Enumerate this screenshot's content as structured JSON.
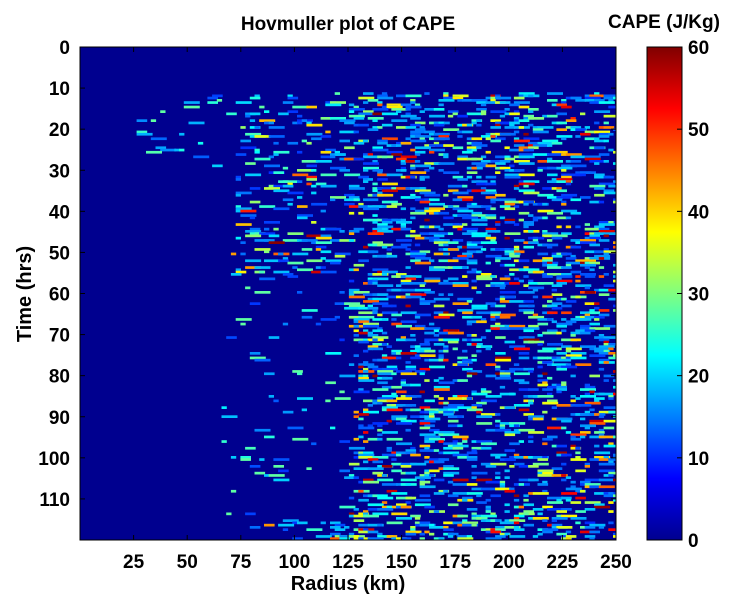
{
  "chart_data": {
    "type": "heatmap",
    "title": "Hovmuller plot of CAPE",
    "xlabel": "Radius (km)",
    "ylabel": "Time (hrs)",
    "xlim": [
      0,
      250
    ],
    "ylim": [
      0,
      120
    ],
    "y_axis_direction": "downward",
    "x_ticks": [
      25,
      50,
      75,
      100,
      125,
      150,
      175,
      200,
      225,
      250
    ],
    "y_ticks": [
      0,
      10,
      20,
      30,
      40,
      50,
      60,
      70,
      80,
      90,
      100,
      110
    ],
    "colormap": "jet",
    "background_value": 0,
    "colorbar": {
      "label": "CAPE (J/Kg)",
      "range": [
        0,
        60
      ],
      "ticks": [
        0,
        10,
        20,
        30,
        40,
        50,
        60
      ]
    },
    "features": [
      {
        "note": "Near-zero CAPE inside the eye region",
        "radius_range_km": [
          0,
          65
        ],
        "time_range_hrs": [
          0,
          120
        ]
      },
      {
        "note": "Sparse weak CAPE at early times",
        "radius_range_km": [
          25,
          65
        ],
        "time_range_hrs": [
          10,
          30
        ]
      },
      {
        "note": "Scattered moderate-to-high CAPE in outer region",
        "radius_range_km": [
          65,
          250
        ],
        "time_range_hrs": [
          12,
          120
        ]
      },
      {
        "note": "Reduced CAPE pocket",
        "radius_range_km": [
          70,
          125
        ],
        "time_range_hrs": [
          55,
          115
        ]
      }
    ]
  }
}
